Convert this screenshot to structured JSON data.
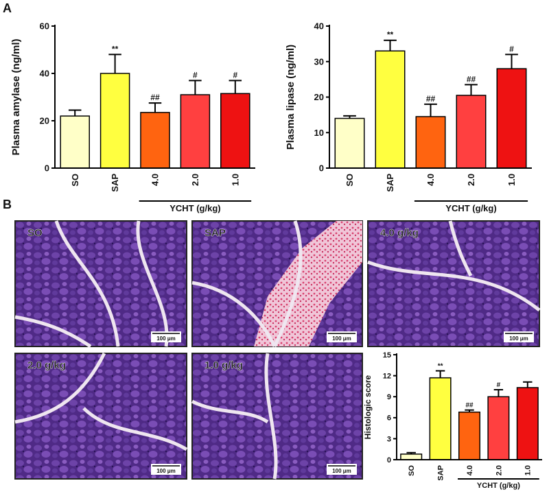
{
  "panels": [
    "A",
    "B"
  ],
  "chart_data": [
    {
      "type": "bar",
      "ylabel": "Plasma amylase (ng/ml)",
      "categories": [
        "SO",
        "SAP",
        "4.0",
        "2.0",
        "1.0"
      ],
      "values": [
        22,
        40,
        23.5,
        31,
        31.5
      ],
      "errors": [
        2.5,
        8,
        4,
        6,
        5.5
      ],
      "annotations": [
        null,
        "**",
        "##",
        "#",
        "#"
      ],
      "colors": [
        "#ffffc8",
        "#ffff40",
        "#ff6410",
        "#ff4040",
        "#ee1212"
      ],
      "group_label": "YCHT (g/kg)",
      "ylim": [
        0,
        60
      ],
      "yticks": [
        0,
        20,
        40,
        60
      ]
    },
    {
      "type": "bar",
      "ylabel": "Plasma lipase (ng/ml)",
      "categories": [
        "SO",
        "SAP",
        "4.0",
        "2.0",
        "1.0"
      ],
      "values": [
        14,
        33,
        14.5,
        20.5,
        28
      ],
      "errors": [
        0.7,
        3,
        3.5,
        3,
        4
      ],
      "annotations": [
        null,
        "**",
        "##",
        "##",
        "#"
      ],
      "colors": [
        "#ffffc8",
        "#ffff40",
        "#ff6410",
        "#ff4040",
        "#ee1212"
      ],
      "group_label": "YCHT (g/kg)",
      "ylim": [
        0,
        40
      ],
      "yticks": [
        0,
        10,
        20,
        30,
        40
      ]
    },
    {
      "type": "bar",
      "ylabel": "Histologic score",
      "categories": [
        "SO",
        "SAP",
        "4.0",
        "2.0",
        "1.0"
      ],
      "values": [
        0.8,
        11.7,
        6.8,
        9,
        10.3
      ],
      "errors": [
        0.2,
        1,
        0.3,
        1,
        0.8
      ],
      "annotations": [
        null,
        "**",
        "##",
        "#",
        null
      ],
      "colors": [
        "#ffffc8",
        "#ffff40",
        "#ff6410",
        "#ff4040",
        "#ee1212"
      ],
      "group_label": "YCHT (g/kg)",
      "ylim": [
        0,
        15
      ],
      "yticks": [
        0,
        3,
        6,
        9,
        12,
        15
      ]
    }
  ],
  "images": [
    {
      "label": "SO",
      "scale_bar": "100 μm"
    },
    {
      "label": "SAP",
      "scale_bar": "100 μm"
    },
    {
      "label": "4.0 g/kg",
      "scale_bar": "100 μm"
    },
    {
      "label": "2.0 g/kg",
      "scale_bar": "100 μm"
    },
    {
      "label": "1.0 g/kg",
      "scale_bar": "100 μm"
    }
  ]
}
